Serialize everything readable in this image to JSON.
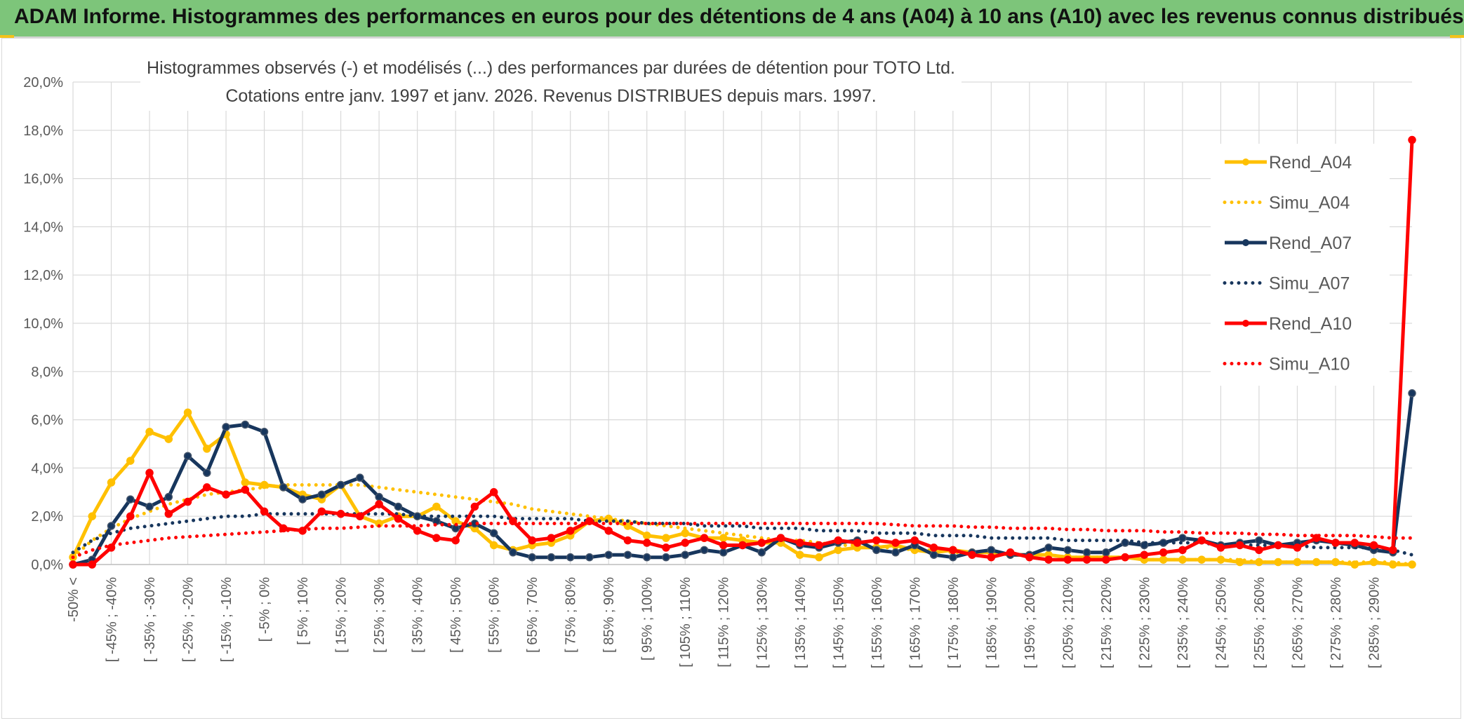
{
  "banner": {
    "title": "ADAM Informe. Histogrammes des performances en euros pour des détentions de 4 ans (A04) à 10 ans (A10) avec les revenus connus distribués"
  },
  "chart_data": {
    "type": "line",
    "title_line1": "Histogrammes observés (-) et modélisés (...) des performances par durées de détention pour TOTO Ltd.",
    "title_line2": "Cotations entre janv. 1997 et janv. 2026. Revenus DISTRIBUES depuis mars. 1997.",
    "ylim": [
      0,
      20
    ],
    "yticks": [
      "0,0%",
      "2,0%",
      "4,0%",
      "6,0%",
      "8,0%",
      "10,0%",
      "12,0%",
      "14,0%",
      "16,0%",
      "18,0%",
      "20,0%"
    ],
    "xtick_labels": [
      "-50% <",
      "[ -45% ; -40%",
      "[ -35% ; -30%",
      "[ -25% ; -20%",
      "[ -15% ; -10%",
      "[ -5% ; 0%",
      "[ 5% ; 10%",
      "[ 15% ; 20%",
      "[ 25% ; 30%",
      "[ 35% ; 40%",
      "[ 45% ; 50%",
      "[ 55% ; 60%",
      "[ 65% ; 70%",
      "[ 75% ; 80%",
      "[ 85% ; 90%",
      "[ 95% ; 100%",
      "[ 105% ; 110%",
      "[ 115% ; 120%",
      "[ 125% ; 130%",
      "[ 135% ; 140%",
      "[ 145% ; 150%",
      "[ 155% ; 160%",
      "[ 165% ; 170%",
      "[ 175% ; 180%",
      "[ 185% ; 190%",
      "[ 195% ; 200%",
      "[ 205% ; 210%",
      "[ 215% ; 220%",
      "[ 225% ; 230%",
      "[ 235% ; 240%",
      "[ 245% ; 250%",
      "[ 255% ; 260%",
      "[ 265% ; 270%",
      "[ 275% ; 280%",
      "[ 285% ; 290%"
    ],
    "category_count": 71,
    "legend_position": "right",
    "series": [
      {
        "name": "Rend_A04",
        "style": "solid",
        "color": "#ffc000",
        "values": [
          0.3,
          2.0,
          3.4,
          4.3,
          5.5,
          5.2,
          6.3,
          4.8,
          5.4,
          3.4,
          3.3,
          3.2,
          2.9,
          2.7,
          3.3,
          2.0,
          1.7,
          2.0,
          2.0,
          2.4,
          1.8,
          1.5,
          0.8,
          0.6,
          0.8,
          0.9,
          1.2,
          1.8,
          1.9,
          1.6,
          1.2,
          1.1,
          1.3,
          1.1,
          1.1,
          1.0,
          0.9,
          0.9,
          0.4,
          0.3,
          0.6,
          0.7,
          0.7,
          0.8,
          0.6,
          0.5,
          0.6,
          0.5,
          0.5,
          0.4,
          0.4,
          0.4,
          0.3,
          0.3,
          0.3,
          0.3,
          0.2,
          0.2,
          0.2,
          0.2,
          0.2,
          0.1,
          0.1,
          0.1,
          0.1,
          0.1,
          0.1,
          0.0,
          0.1,
          0.0,
          0.0
        ]
      },
      {
        "name": "Simu_A04",
        "style": "dotted",
        "color": "#ffc000",
        "values": [
          0.3,
          1.0,
          1.5,
          1.9,
          2.2,
          2.5,
          2.7,
          2.9,
          3.0,
          3.1,
          3.2,
          3.3,
          3.3,
          3.3,
          3.3,
          3.3,
          3.2,
          3.1,
          3.0,
          2.9,
          2.8,
          2.7,
          2.6,
          2.5,
          2.3,
          2.2,
          2.1,
          2.0,
          1.9,
          1.8,
          1.7,
          1.6,
          1.5,
          1.4,
          1.3,
          1.2,
          1.1,
          1.0,
          1.0,
          0.9,
          0.8,
          0.8,
          0.7,
          0.7,
          0.6,
          0.6,
          0.5,
          0.5,
          0.5,
          0.4,
          0.4,
          0.4,
          0.3,
          0.3,
          0.3,
          0.3,
          0.2,
          0.2,
          0.2,
          0.2,
          0.2,
          0.2,
          0.1,
          0.1,
          0.1,
          0.1,
          0.1,
          0.1,
          0.1,
          0.1,
          0.0
        ]
      },
      {
        "name": "Rend_A07",
        "style": "solid",
        "color": "#17365d",
        "values": [
          0.0,
          0.2,
          1.6,
          2.7,
          2.4,
          2.8,
          4.5,
          3.8,
          5.7,
          5.8,
          5.5,
          3.2,
          2.7,
          2.9,
          3.3,
          3.6,
          2.8,
          2.4,
          2.0,
          1.8,
          1.5,
          1.7,
          1.3,
          0.5,
          0.3,
          0.3,
          0.3,
          0.3,
          0.4,
          0.4,
          0.3,
          0.3,
          0.4,
          0.6,
          0.5,
          0.8,
          0.5,
          1.1,
          0.8,
          0.7,
          0.9,
          1.0,
          0.6,
          0.5,
          0.8,
          0.4,
          0.3,
          0.5,
          0.6,
          0.4,
          0.4,
          0.7,
          0.6,
          0.5,
          0.5,
          0.9,
          0.8,
          0.9,
          1.1,
          1.0,
          0.8,
          0.9,
          1.0,
          0.8,
          0.9,
          1.0,
          0.9,
          0.8,
          0.6,
          0.5,
          7.1
        ]
      },
      {
        "name": "Simu_A07",
        "style": "dotted",
        "color": "#17365d",
        "values": [
          0.5,
          1.0,
          1.3,
          1.5,
          1.6,
          1.7,
          1.8,
          1.9,
          2.0,
          2.0,
          2.1,
          2.1,
          2.1,
          2.1,
          2.1,
          2.1,
          2.1,
          2.1,
          2.0,
          2.0,
          2.0,
          2.0,
          2.0,
          1.9,
          1.9,
          1.9,
          1.9,
          1.8,
          1.8,
          1.8,
          1.7,
          1.7,
          1.7,
          1.6,
          1.6,
          1.6,
          1.5,
          1.5,
          1.5,
          1.4,
          1.4,
          1.4,
          1.3,
          1.3,
          1.3,
          1.2,
          1.2,
          1.2,
          1.1,
          1.1,
          1.1,
          1.1,
          1.0,
          1.0,
          1.0,
          1.0,
          0.9,
          0.9,
          0.9,
          0.9,
          0.8,
          0.8,
          0.8,
          0.8,
          0.8,
          0.7,
          0.7,
          0.7,
          0.7,
          0.6,
          0.4
        ]
      },
      {
        "name": "Rend_A10",
        "style": "solid",
        "color": "#ff0000",
        "values": [
          0.0,
          0.0,
          0.7,
          2.0,
          3.8,
          2.1,
          2.6,
          3.2,
          2.9,
          3.1,
          2.2,
          1.5,
          1.4,
          2.2,
          2.1,
          2.0,
          2.5,
          1.9,
          1.4,
          1.1,
          1.0,
          2.4,
          3.0,
          1.8,
          1.0,
          1.1,
          1.4,
          1.8,
          1.4,
          1.0,
          0.9,
          0.7,
          0.9,
          1.1,
          0.8,
          0.8,
          0.9,
          1.1,
          0.9,
          0.8,
          1.0,
          0.9,
          1.0,
          0.9,
          1.0,
          0.7,
          0.6,
          0.4,
          0.3,
          0.5,
          0.3,
          0.2,
          0.2,
          0.2,
          0.2,
          0.3,
          0.4,
          0.5,
          0.6,
          1.0,
          0.7,
          0.8,
          0.6,
          0.8,
          0.7,
          1.1,
          0.9,
          0.9,
          0.8,
          0.6,
          17.6
        ]
      },
      {
        "name": "Simu_A10",
        "style": "dotted",
        "color": "#ff0000",
        "values": [
          0.3,
          0.6,
          0.8,
          0.9,
          1.0,
          1.1,
          1.15,
          1.2,
          1.25,
          1.3,
          1.35,
          1.4,
          1.45,
          1.5,
          1.5,
          1.55,
          1.6,
          1.6,
          1.6,
          1.65,
          1.65,
          1.7,
          1.7,
          1.7,
          1.7,
          1.7,
          1.7,
          1.7,
          1.7,
          1.7,
          1.7,
          1.7,
          1.7,
          1.7,
          1.7,
          1.7,
          1.7,
          1.7,
          1.7,
          1.7,
          1.7,
          1.7,
          1.7,
          1.65,
          1.6,
          1.6,
          1.6,
          1.55,
          1.55,
          1.5,
          1.5,
          1.5,
          1.45,
          1.45,
          1.4,
          1.4,
          1.4,
          1.35,
          1.35,
          1.3,
          1.3,
          1.3,
          1.25,
          1.25,
          1.2,
          1.2,
          1.2,
          1.2,
          1.15,
          1.1,
          1.1
        ]
      }
    ]
  },
  "colors": {
    "banner": "#7dc57a",
    "grid": "#d9d9d9",
    "text": "#595959"
  }
}
